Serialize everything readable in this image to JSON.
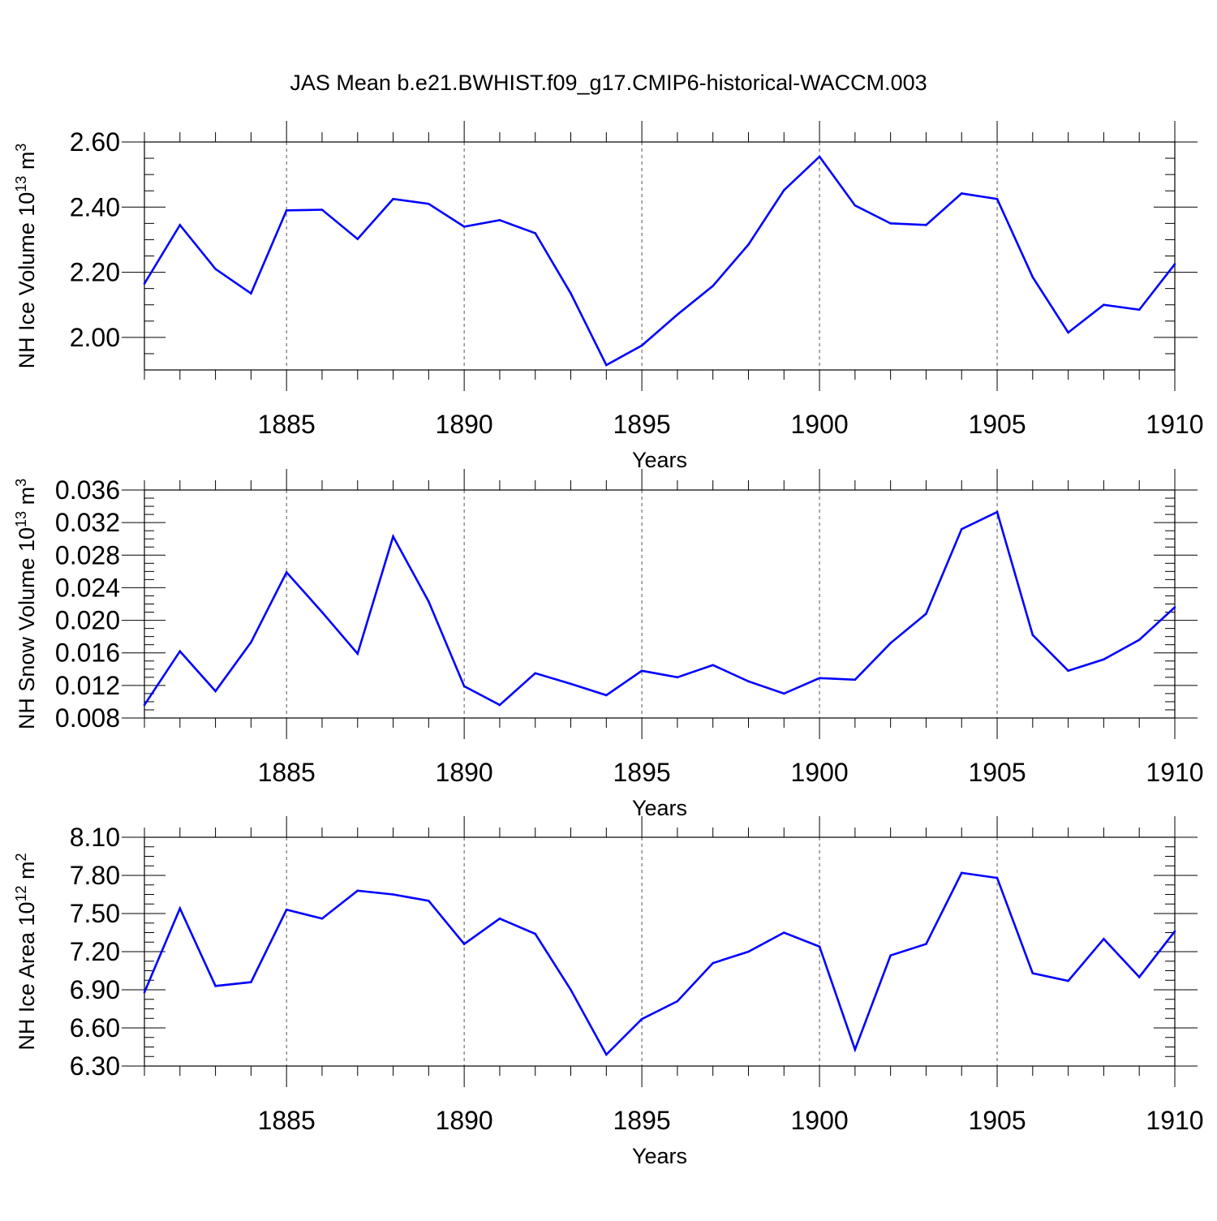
{
  "title": "JAS Mean b.e21.BWHIST.f09_g17.CMIP6-historical-WACCM.003",
  "chart_data": [
    {
      "type": "line",
      "title": "",
      "xlabel": "Years",
      "ylabel": "NH Ice Volume 10",
      "ylabel_sup": "13",
      "ylabel_unit": " m",
      "ylabel_unit_sup": "3",
      "xlim": [
        1881,
        1910
      ],
      "ylim": [
        1.9,
        2.6
      ],
      "xticks": [
        1885,
        1890,
        1895,
        1900,
        1905,
        1910
      ],
      "xtick_labels": [
        "1885",
        "1890",
        "1895",
        "1900",
        "1905",
        "1910"
      ],
      "yticks": [
        2.0,
        2.2,
        2.4,
        2.6
      ],
      "ytick_labels": [
        "2.00",
        "2.20",
        "2.40",
        "2.60"
      ],
      "yminor_step": 0.05,
      "grid": "vertical dashed at major x ticks",
      "color": "#0000ff",
      "series": [
        {
          "name": "NH Ice Volume",
          "x": [
            1881,
            1882,
            1883,
            1884,
            1885,
            1886,
            1887,
            1888,
            1889,
            1890,
            1891,
            1892,
            1893,
            1894,
            1895,
            1896,
            1897,
            1898,
            1899,
            1900,
            1901,
            1902,
            1903,
            1904,
            1905,
            1906,
            1907,
            1908,
            1909,
            1910
          ],
          "values": [
            2.165,
            2.345,
            2.21,
            2.135,
            2.39,
            2.392,
            2.302,
            2.425,
            2.41,
            2.34,
            2.36,
            2.32,
            2.135,
            1.915,
            1.975,
            2.07,
            2.158,
            2.285,
            2.452,
            2.555,
            2.405,
            2.35,
            2.345,
            2.442,
            2.425,
            2.185,
            2.015,
            2.1,
            2.085,
            2.225
          ]
        }
      ]
    },
    {
      "type": "line",
      "title": "",
      "xlabel": "Years",
      "ylabel": "NH Snow Volume 10",
      "ylabel_sup": "13",
      "ylabel_unit": " m",
      "ylabel_unit_sup": "3",
      "xlim": [
        1881,
        1910
      ],
      "ylim": [
        0.008,
        0.036
      ],
      "xticks": [
        1885,
        1890,
        1895,
        1900,
        1905,
        1910
      ],
      "xtick_labels": [
        "1885",
        "1890",
        "1895",
        "1900",
        "1905",
        "1910"
      ],
      "yticks": [
        0.008,
        0.012,
        0.016,
        0.02,
        0.024,
        0.028,
        0.032,
        0.036
      ],
      "ytick_labels": [
        "0.008",
        "0.012",
        "0.016",
        "0.020",
        "0.024",
        "0.028",
        "0.032",
        "0.036"
      ],
      "yminor_step": 0.001,
      "grid": "vertical dashed at major x ticks",
      "color": "#0000ff",
      "series": [
        {
          "name": "NH Snow Volume",
          "x": [
            1881,
            1882,
            1883,
            1884,
            1885,
            1886,
            1887,
            1888,
            1889,
            1890,
            1891,
            1892,
            1893,
            1894,
            1895,
            1896,
            1897,
            1898,
            1899,
            1900,
            1901,
            1902,
            1903,
            1904,
            1905,
            1906,
            1907,
            1908,
            1909,
            1910
          ],
          "values": [
            0.0096,
            0.0162,
            0.0113,
            0.0173,
            0.0259,
            0.021,
            0.0159,
            0.0303,
            0.0223,
            0.0119,
            0.0096,
            0.0135,
            0.0122,
            0.0108,
            0.0138,
            0.013,
            0.0145,
            0.0125,
            0.011,
            0.0129,
            0.0127,
            0.0172,
            0.0208,
            0.0312,
            0.0333,
            0.0182,
            0.0138,
            0.0152,
            0.0176,
            0.0216
          ]
        }
      ]
    },
    {
      "type": "line",
      "title": "",
      "xlabel": "Years",
      "ylabel": "NH Ice Area 10",
      "ylabel_sup": "12",
      "ylabel_unit": " m",
      "ylabel_unit_sup": "2",
      "xlim": [
        1881,
        1910
      ],
      "ylim": [
        6.3,
        8.1
      ],
      "xticks": [
        1885,
        1890,
        1895,
        1900,
        1905,
        1910
      ],
      "xtick_labels": [
        "1885",
        "1890",
        "1895",
        "1900",
        "1905",
        "1910"
      ],
      "yticks": [
        6.3,
        6.6,
        6.9,
        7.2,
        7.5,
        7.8,
        8.1
      ],
      "ytick_labels": [
        "6.30",
        "6.60",
        "6.90",
        "7.20",
        "7.50",
        "7.80",
        "8.10"
      ],
      "yminor_step": 0.075,
      "grid": "vertical dashed at major x ticks",
      "color": "#0000ff",
      "series": [
        {
          "name": "NH Ice Area",
          "x": [
            1881,
            1882,
            1883,
            1884,
            1885,
            1886,
            1887,
            1888,
            1889,
            1890,
            1891,
            1892,
            1893,
            1894,
            1895,
            1896,
            1897,
            1898,
            1899,
            1900,
            1901,
            1902,
            1903,
            1904,
            1905,
            1906,
            1907,
            1908,
            1909,
            1910
          ],
          "values": [
            6.88,
            7.54,
            6.93,
            6.96,
            7.53,
            7.46,
            7.68,
            7.65,
            7.6,
            7.26,
            7.46,
            7.34,
            6.9,
            6.39,
            6.67,
            6.81,
            7.11,
            7.2,
            7.35,
            7.24,
            6.43,
            7.17,
            7.26,
            7.82,
            7.78,
            7.03,
            6.97,
            7.3,
            7.0,
            7.36
          ]
        }
      ]
    }
  ]
}
